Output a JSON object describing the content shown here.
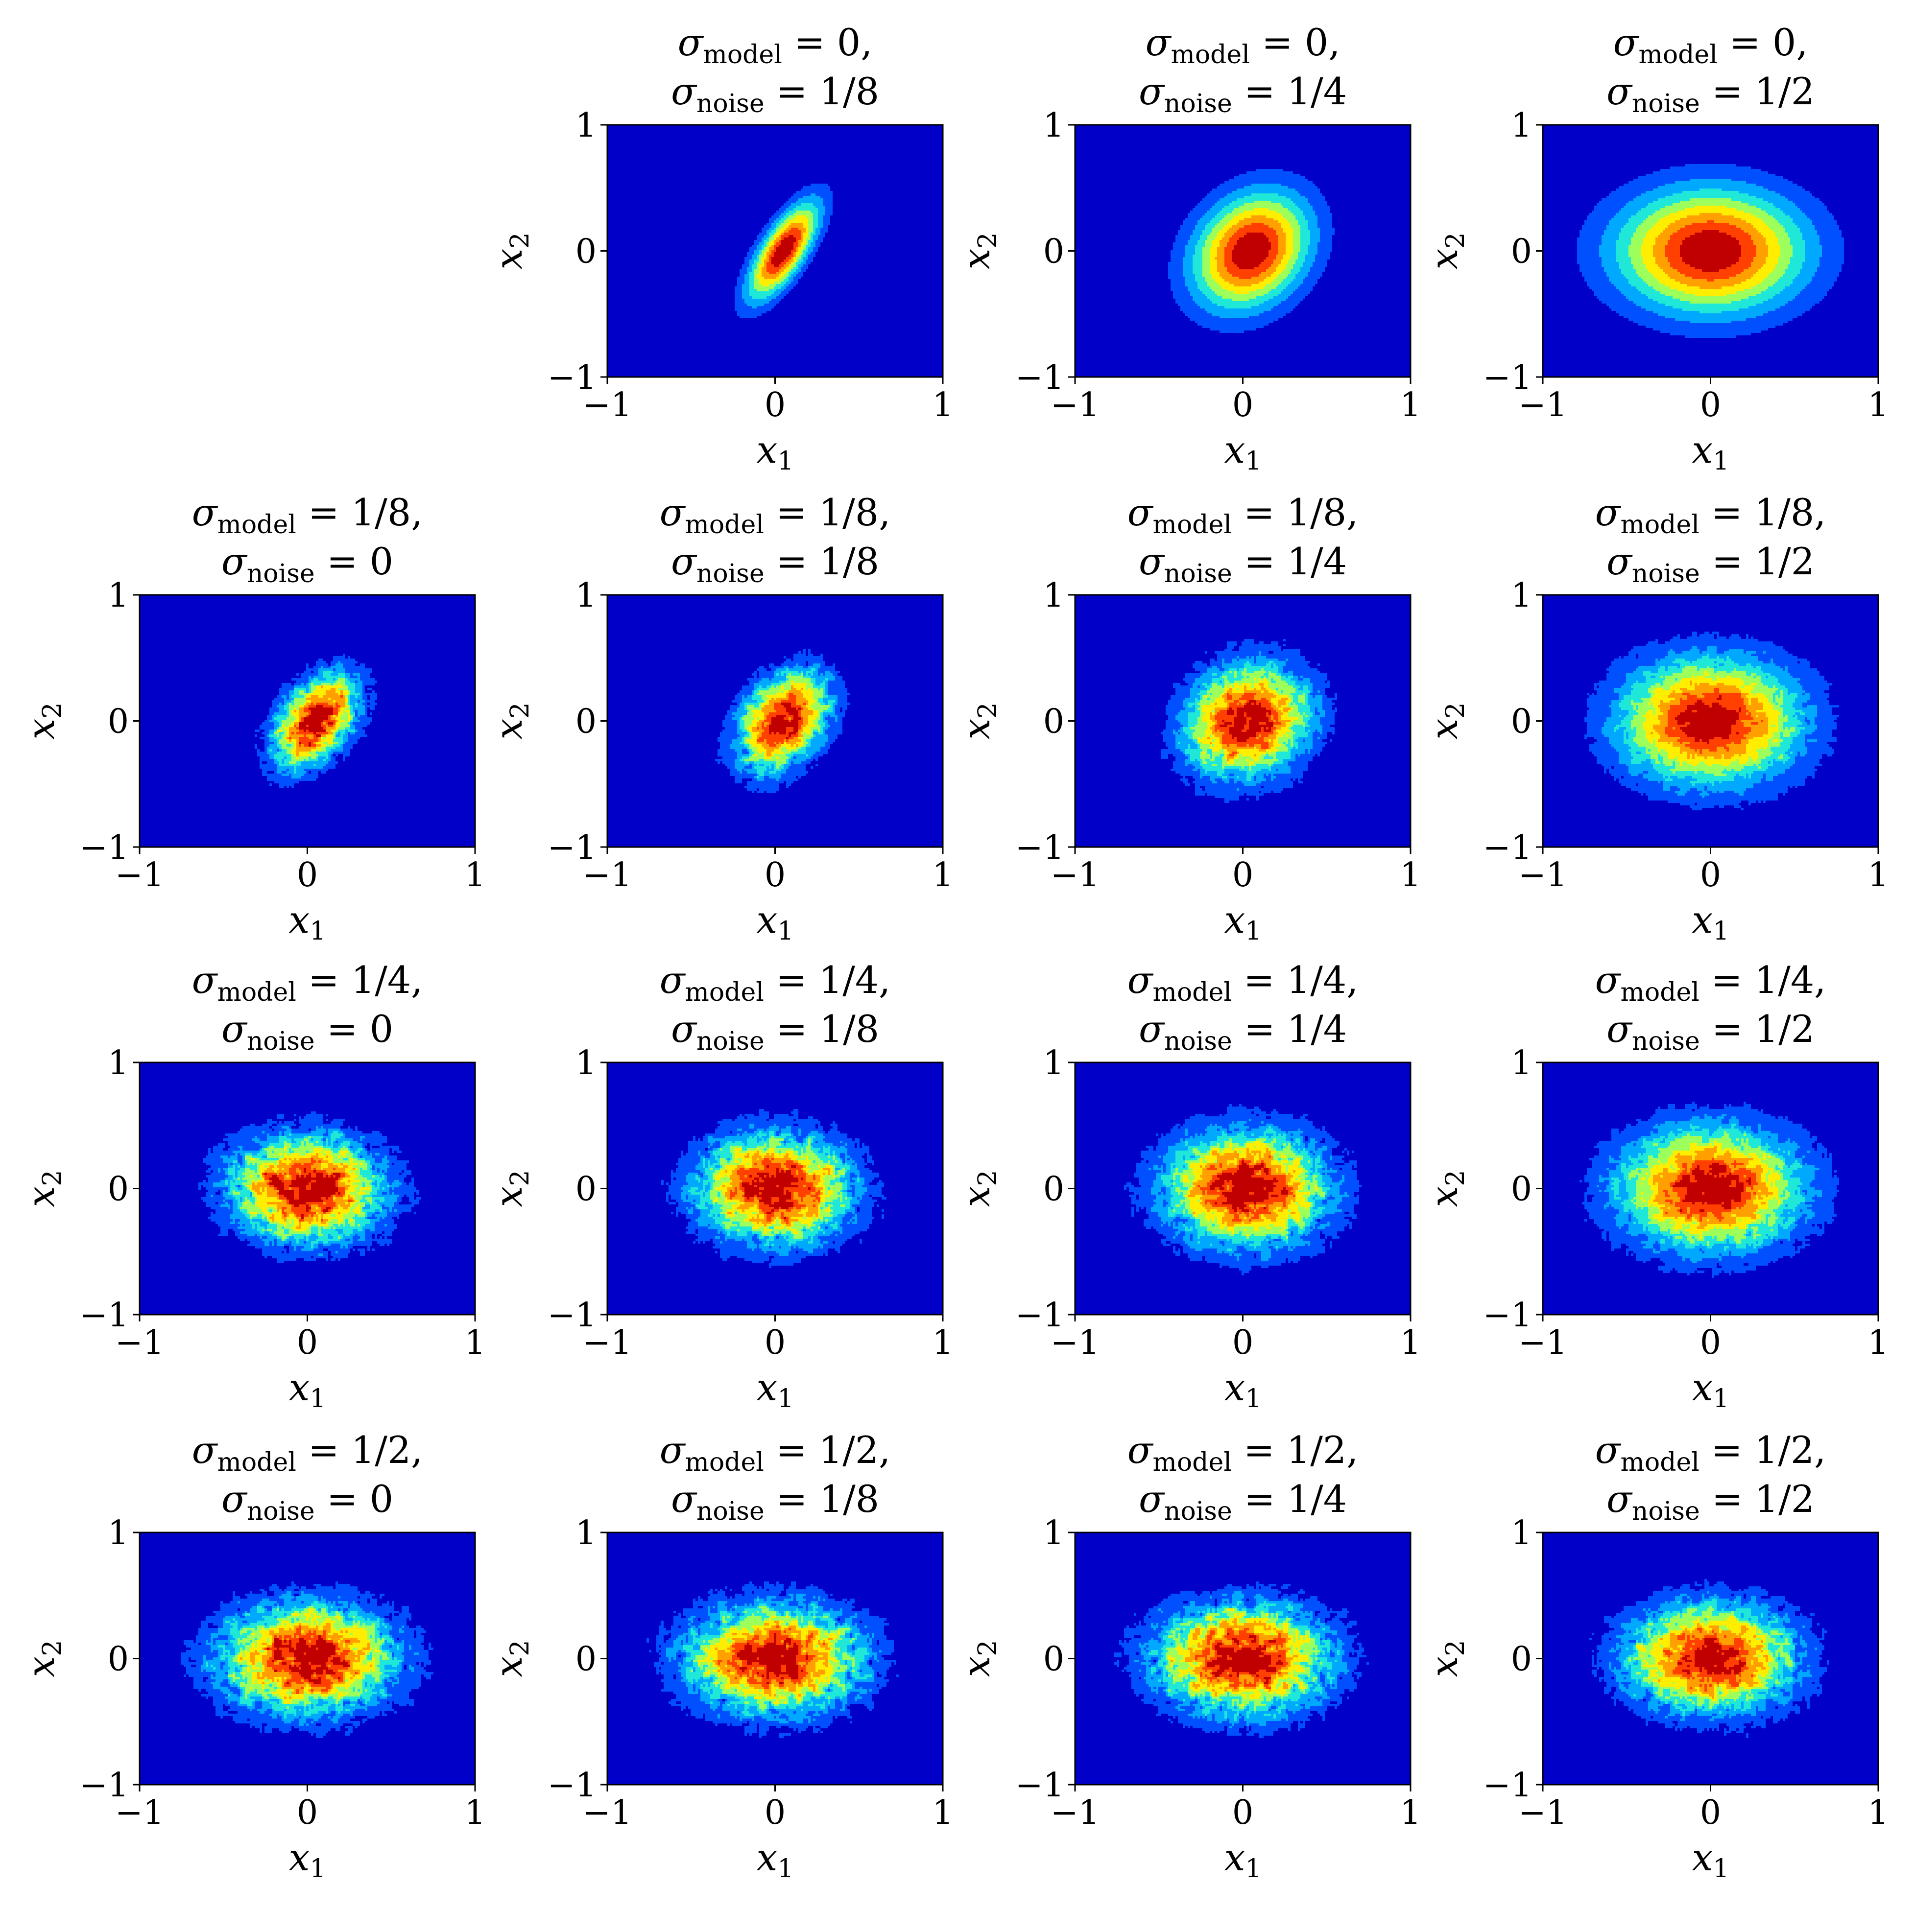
{
  "figure": {
    "x_label_var": "x",
    "x_label_sub": "1",
    "y_label_var": "x",
    "y_label_sub": "2",
    "sigma_symbol": "σ",
    "model_sub": "model",
    "noise_sub": "noise",
    "equals": " = "
  },
  "chart_data": [
    {
      "type": "heatmap",
      "row": 0,
      "col": 1,
      "sigma_model": "0",
      "sigma_noise": "1/8",
      "xlim": [
        -1,
        1
      ],
      "ylim": [
        -1,
        1
      ],
      "x_ticks": [
        "−1",
        "0",
        "1"
      ],
      "y_ticks": [
        "−1",
        "0",
        "1"
      ],
      "center": [
        0.05,
        0.0
      ],
      "spread": [
        0.09,
        0.28
      ],
      "tilt": -0.42,
      "noise": 0.0
    },
    {
      "type": "heatmap",
      "row": 0,
      "col": 2,
      "sigma_model": "0",
      "sigma_noise": "1/4",
      "xlim": [
        -1,
        1
      ],
      "ylim": [
        -1,
        1
      ],
      "x_ticks": [
        "−1",
        "0",
        "1"
      ],
      "y_ticks": [
        "−1",
        "0",
        "1"
      ],
      "center": [
        0.05,
        0.0
      ],
      "spread": [
        0.22,
        0.32
      ],
      "tilt": -0.35,
      "noise": 0.0
    },
    {
      "type": "heatmap",
      "row": 0,
      "col": 3,
      "sigma_model": "0",
      "sigma_noise": "1/2",
      "xlim": [
        -1,
        1
      ],
      "ylim": [
        -1,
        1
      ],
      "x_ticks": [
        "−1",
        "0",
        "1"
      ],
      "y_ticks": [
        "−1",
        "0",
        "1"
      ],
      "center": [
        0.0,
        0.0
      ],
      "spread": [
        0.38,
        0.33
      ],
      "tilt": 0.0,
      "noise": 0.0
    },
    {
      "type": "heatmap",
      "row": 1,
      "col": 0,
      "sigma_model": "1/8",
      "sigma_noise": "0",
      "xlim": [
        -1,
        1
      ],
      "ylim": [
        -1,
        1
      ],
      "x_ticks": [
        "−1",
        "0",
        "1"
      ],
      "y_ticks": [
        "−1",
        "0",
        "1"
      ],
      "center": [
        0.05,
        0.0
      ],
      "spread": [
        0.14,
        0.26
      ],
      "tilt": -0.4,
      "noise": 0.34
    },
    {
      "type": "heatmap",
      "row": 1,
      "col": 1,
      "sigma_model": "1/8",
      "sigma_noise": "1/8",
      "xlim": [
        -1,
        1
      ],
      "ylim": [
        -1,
        1
      ],
      "x_ticks": [
        "−1",
        "0",
        "1"
      ],
      "y_ticks": [
        "−1",
        "0",
        "1"
      ],
      "center": [
        0.05,
        0.0
      ],
      "spread": [
        0.16,
        0.27
      ],
      "tilt": -0.38,
      "noise": 0.3
    },
    {
      "type": "heatmap",
      "row": 1,
      "col": 2,
      "sigma_model": "1/8",
      "sigma_noise": "1/4",
      "xlim": [
        -1,
        1
      ],
      "ylim": [
        -1,
        1
      ],
      "x_ticks": [
        "−1",
        "0",
        "1"
      ],
      "y_ticks": [
        "−1",
        "0",
        "1"
      ],
      "center": [
        0.03,
        0.0
      ],
      "spread": [
        0.24,
        0.3
      ],
      "tilt": -0.3,
      "noise": 0.26
    },
    {
      "type": "heatmap",
      "row": 1,
      "col": 3,
      "sigma_model": "1/8",
      "sigma_noise": "1/2",
      "xlim": [
        -1,
        1
      ],
      "ylim": [
        -1,
        1
      ],
      "x_ticks": [
        "−1",
        "0",
        "1"
      ],
      "y_ticks": [
        "−1",
        "0",
        "1"
      ],
      "center": [
        0.0,
        0.0
      ],
      "spread": [
        0.36,
        0.33
      ],
      "tilt": 0.0,
      "noise": 0.16
    },
    {
      "type": "heatmap",
      "row": 2,
      "col": 0,
      "sigma_model": "1/4",
      "sigma_noise": "0",
      "xlim": [
        -1,
        1
      ],
      "ylim": [
        -1,
        1
      ],
      "x_ticks": [
        "−1",
        "0",
        "1"
      ],
      "y_ticks": [
        "−1",
        "0",
        "1"
      ],
      "center": [
        0.0,
        0.0
      ],
      "spread": [
        0.3,
        0.27
      ],
      "tilt": -0.15,
      "noise": 0.36
    },
    {
      "type": "heatmap",
      "row": 2,
      "col": 1,
      "sigma_model": "1/4",
      "sigma_noise": "1/8",
      "xlim": [
        -1,
        1
      ],
      "ylim": [
        -1,
        1
      ],
      "x_ticks": [
        "−1",
        "0",
        "1"
      ],
      "y_ticks": [
        "−1",
        "0",
        "1"
      ],
      "center": [
        0.0,
        0.0
      ],
      "spread": [
        0.3,
        0.28
      ],
      "tilt": -0.15,
      "noise": 0.34
    },
    {
      "type": "heatmap",
      "row": 2,
      "col": 2,
      "sigma_model": "1/4",
      "sigma_noise": "1/4",
      "xlim": [
        -1,
        1
      ],
      "ylim": [
        -1,
        1
      ],
      "x_ticks": [
        "−1",
        "0",
        "1"
      ],
      "y_ticks": [
        "−1",
        "0",
        "1"
      ],
      "center": [
        0.02,
        0.0
      ],
      "spread": [
        0.32,
        0.3
      ],
      "tilt": -0.1,
      "noise": 0.3
    },
    {
      "type": "heatmap",
      "row": 2,
      "col": 3,
      "sigma_model": "1/4",
      "sigma_noise": "1/2",
      "xlim": [
        -1,
        1
      ],
      "ylim": [
        -1,
        1
      ],
      "x_ticks": [
        "−1",
        "0",
        "1"
      ],
      "y_ticks": [
        "−1",
        "0",
        "1"
      ],
      "center": [
        0.0,
        0.0
      ],
      "spread": [
        0.36,
        0.32
      ],
      "tilt": 0.0,
      "noise": 0.22
    },
    {
      "type": "heatmap",
      "row": 3,
      "col": 0,
      "sigma_model": "1/2",
      "sigma_noise": "0",
      "xlim": [
        -1,
        1
      ],
      "ylim": [
        -1,
        1
      ],
      "x_ticks": [
        "−1",
        "0",
        "1"
      ],
      "y_ticks": [
        "−1",
        "0",
        "1"
      ],
      "center": [
        0.0,
        0.0
      ],
      "spread": [
        0.34,
        0.28
      ],
      "tilt": 0.0,
      "noise": 0.34
    },
    {
      "type": "heatmap",
      "row": 3,
      "col": 1,
      "sigma_model": "1/2",
      "sigma_noise": "1/8",
      "xlim": [
        -1,
        1
      ],
      "ylim": [
        -1,
        1
      ],
      "x_ticks": [
        "−1",
        "0",
        "1"
      ],
      "y_ticks": [
        "−1",
        "0",
        "1"
      ],
      "center": [
        0.0,
        0.0
      ],
      "spread": [
        0.34,
        0.28
      ],
      "tilt": 0.0,
      "noise": 0.34
    },
    {
      "type": "heatmap",
      "row": 3,
      "col": 2,
      "sigma_model": "1/2",
      "sigma_noise": "1/4",
      "xlim": [
        -1,
        1
      ],
      "ylim": [
        -1,
        1
      ],
      "x_ticks": [
        "−1",
        "0",
        "1"
      ],
      "y_ticks": [
        "−1",
        "0",
        "1"
      ],
      "center": [
        0.0,
        0.0
      ],
      "spread": [
        0.34,
        0.28
      ],
      "tilt": 0.0,
      "noise": 0.34
    },
    {
      "type": "heatmap",
      "row": 3,
      "col": 3,
      "sigma_model": "1/2",
      "sigma_noise": "1/2",
      "xlim": [
        -1,
        1
      ],
      "ylim": [
        -1,
        1
      ],
      "x_ticks": [
        "−1",
        "0",
        "1"
      ],
      "y_ticks": [
        "−1",
        "0",
        "1"
      ],
      "center": [
        0.0,
        0.0
      ],
      "spread": [
        0.33,
        0.28
      ],
      "tilt": 0.0,
      "noise": 0.3
    }
  ],
  "colors": {
    "levels": [
      "#0000c8",
      "#0050ff",
      "#00a8ff",
      "#20e8d8",
      "#9cff5c",
      "#ffee00",
      "#ffa000",
      "#ff4000",
      "#c00000"
    ]
  }
}
